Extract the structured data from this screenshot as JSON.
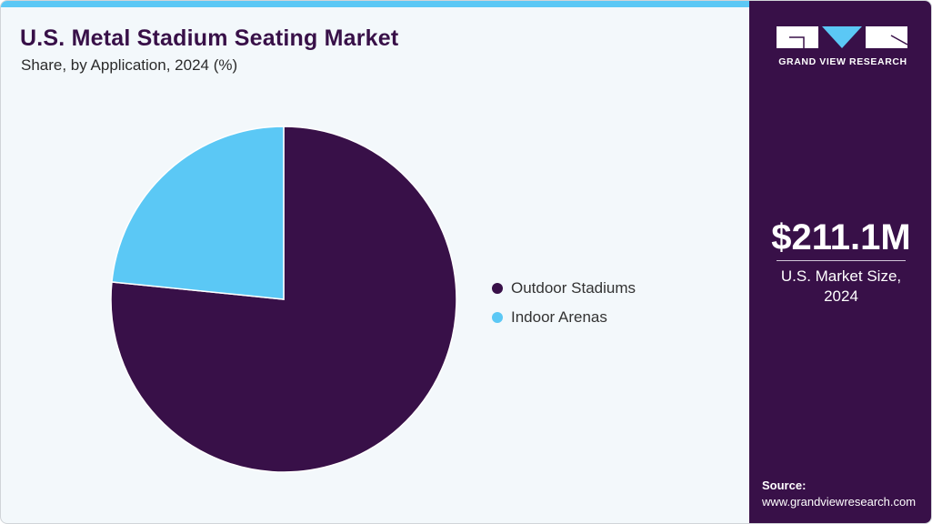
{
  "header": {
    "title": "U.S. Metal Stadium Seating Market",
    "subtitle": "Share, by Application, 2024 (%)"
  },
  "colors": {
    "accent": "#5bc8f5",
    "brand": "#381048",
    "background": "#f3f8fb"
  },
  "sidebar": {
    "logo_text": "GRAND VIEW RESEARCH",
    "market_value": "$211.1M",
    "market_label_line1": "U.S. Market Size,",
    "market_label_line2": "2024",
    "source_label": "Source:",
    "source_url": "www.grandviewresearch.com"
  },
  "legend": {
    "items": [
      {
        "label": "Outdoor Stadiums",
        "color": "#381048"
      },
      {
        "label": "Indoor Arenas",
        "color": "#5bc8f5"
      }
    ]
  },
  "chart_data": {
    "type": "pie",
    "title": "U.S. Metal Stadium Seating Market",
    "subtitle": "Share, by Application, 2024 (%)",
    "categories": [
      "Outdoor Stadiums",
      "Indoor Arenas"
    ],
    "values": [
      76.6,
      23.4
    ],
    "colors": [
      "#381048",
      "#5bc8f5"
    ],
    "legend_position": "right",
    "start_angle": "12 o'clock, clockwise"
  }
}
